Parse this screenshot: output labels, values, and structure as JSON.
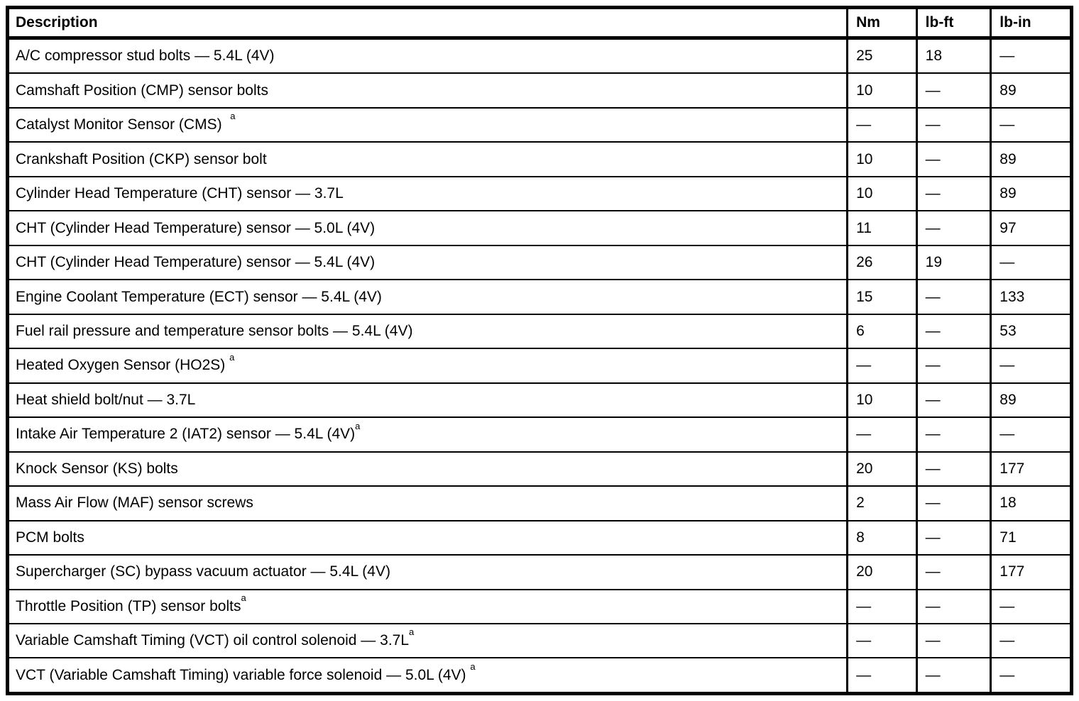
{
  "document": {
    "kind": "torque-specifications-table",
    "colors": {
      "text": "#000000",
      "border": "#000000",
      "background": "#ffffff"
    },
    "table": {
      "columns": [
        "Description",
        "Nm",
        "lb-ft",
        "lb-in"
      ],
      "rows": [
        {
          "desc": "A/C compressor stud bolts — 5.4L (4V)",
          "sup": "",
          "nm": "25",
          "lbft": "18",
          "lbin": "—"
        },
        {
          "desc": "Camshaft Position (CMP) sensor bolts",
          "sup": "",
          "nm": "10",
          "lbft": "—",
          "lbin": "89"
        },
        {
          "desc": "Catalyst Monitor Sensor (CMS)  ",
          "sup": "a",
          "nm": "—",
          "lbft": "—",
          "lbin": "—"
        },
        {
          "desc": "Crankshaft Position (CKP) sensor bolt",
          "sup": "",
          "nm": "10",
          "lbft": "—",
          "lbin": "89"
        },
        {
          "desc": "Cylinder Head Temperature (CHT) sensor — 3.7L",
          "sup": "",
          "nm": "10",
          "lbft": "—",
          "lbin": "89"
        },
        {
          "desc": "CHT (Cylinder Head Temperature) sensor — 5.0L (4V)",
          "sup": "",
          "nm": "11",
          "lbft": "—",
          "lbin": "97"
        },
        {
          "desc": "CHT (Cylinder Head Temperature) sensor — 5.4L (4V)",
          "sup": "",
          "nm": "26",
          "lbft": "19",
          "lbin": "—"
        },
        {
          "desc": "Engine Coolant Temperature (ECT) sensor — 5.4L (4V)",
          "sup": "",
          "nm": "15",
          "lbft": "—",
          "lbin": "133"
        },
        {
          "desc": "Fuel rail pressure and temperature sensor bolts — 5.4L (4V)",
          "sup": "",
          "nm": "6",
          "lbft": "—",
          "lbin": "53"
        },
        {
          "desc": "Heated Oxygen Sensor (HO2S) ",
          "sup": "a",
          "nm": "—",
          "lbft": "—",
          "lbin": "—"
        },
        {
          "desc": "Heat shield bolt/nut — 3.7L",
          "sup": "",
          "nm": "10",
          "lbft": "—",
          "lbin": "89"
        },
        {
          "desc": "Intake Air Temperature 2 (IAT2) sensor — 5.4L (4V)",
          "sup": "a",
          "nm": "—",
          "lbft": "—",
          "lbin": "—"
        },
        {
          "desc": "Knock Sensor (KS) bolts",
          "sup": "",
          "nm": "20",
          "lbft": "—",
          "lbin": "177"
        },
        {
          "desc": "Mass Air Flow (MAF) sensor screws",
          "sup": "",
          "nm": "2",
          "lbft": "—",
          "lbin": "18"
        },
        {
          "desc": "PCM bolts",
          "sup": "",
          "nm": "8",
          "lbft": "—",
          "lbin": "71"
        },
        {
          "desc": "Supercharger (SC) bypass vacuum actuator — 5.4L (4V)",
          "sup": "",
          "nm": "20",
          "lbft": "—",
          "lbin": "177"
        },
        {
          "desc": "Throttle Position (TP) sensor bolts",
          "sup": "a",
          "nm": "—",
          "lbft": "—",
          "lbin": "—"
        },
        {
          "desc": "Variable Camshaft Timing (VCT) oil control solenoid — 3.7L",
          "sup": "a",
          "nm": "—",
          "lbft": "—",
          "lbin": "—"
        },
        {
          "desc": "VCT (Variable Camshaft Timing) variable force solenoid — 5.0L (4V) ",
          "sup": "a",
          "nm": "—",
          "lbft": "—",
          "lbin": "—"
        }
      ]
    }
  }
}
